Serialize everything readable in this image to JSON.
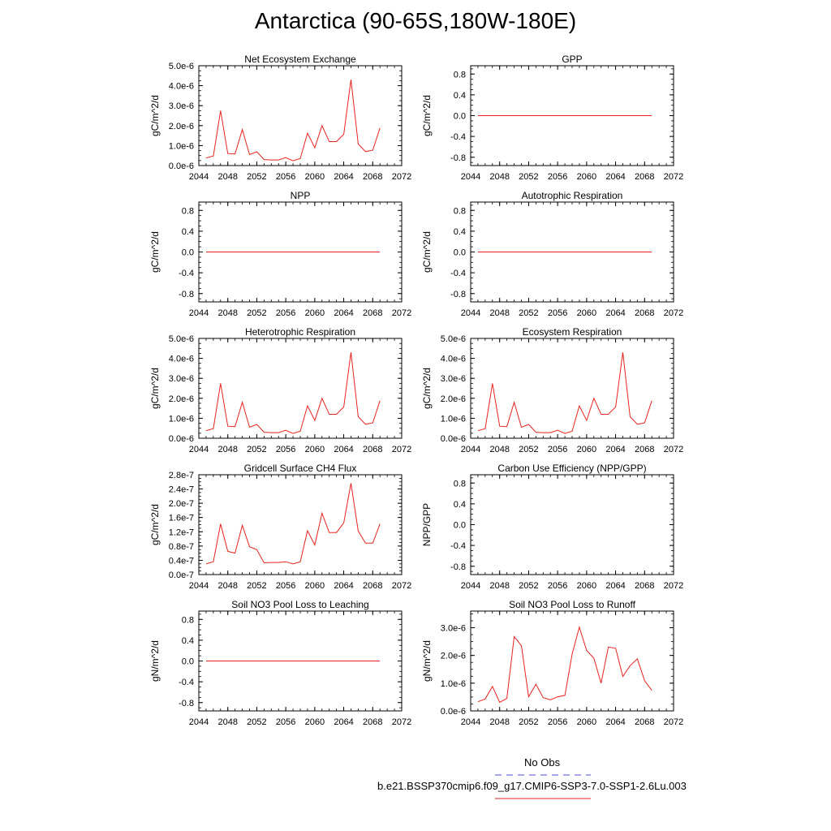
{
  "title": "Antarctica (90-65S,180W-180E)",
  "legend": {
    "items": [
      {
        "label": "No Obs",
        "color": "#4b4bd6",
        "style": "dashed"
      },
      {
        "label": "b.e21.BSSP370cmip6.f09_g17.CMIP6-SSP3-7.0-SSP1-2.6Lu.003",
        "color": "#e8231f",
        "style": "solid"
      }
    ]
  },
  "chart_data": [
    {
      "type": "line",
      "title": "Net Ecosystem Exchange",
      "ylabel": "gC/m^2/d",
      "xlim": [
        2044,
        2072
      ],
      "xticks": [
        "2044",
        "2048",
        "2052",
        "2056",
        "2060",
        "2064",
        "2068",
        "2072"
      ],
      "ylim": [
        0,
        5e-06
      ],
      "yticks": [
        "0.0e-6",
        "1.0e-6",
        "2.0e-6",
        "3.0e-6",
        "4.0e-6",
        "5.0e-6"
      ],
      "series": [
        {
          "color": "#e8231f",
          "x": [
            2045,
            2046,
            2047,
            2048,
            2049,
            2050,
            2051,
            2052,
            2053,
            2054,
            2055,
            2056,
            2057,
            2058,
            2059,
            2060,
            2061,
            2062,
            2063,
            2064,
            2065,
            2066,
            2067,
            2068,
            2069
          ],
          "y": [
            3.8e-07,
            4.8e-07,
            2.75e-06,
            6e-07,
            5.8e-07,
            1.8e-06,
            5.5e-07,
            6.9e-07,
            3e-07,
            2.8e-07,
            2.8e-07,
            4e-07,
            2.4e-07,
            3.5e-07,
            1.62e-06,
            8.9e-07,
            2e-06,
            1.2e-06,
            1.2e-06,
            1.57e-06,
            4.3e-06,
            1.08e-06,
            7e-07,
            7.7e-07,
            1.88e-06
          ]
        }
      ]
    },
    {
      "type": "line",
      "title": "GPP",
      "ylabel": "gC/m^2/d",
      "xlim": [
        2044,
        2072
      ],
      "xticks": [
        "2044",
        "2048",
        "2052",
        "2056",
        "2060",
        "2064",
        "2068",
        "2072"
      ],
      "ylim": [
        -0.96,
        0.96
      ],
      "yticks": [
        "-0.8",
        "-0.4",
        "0.0",
        "0.4",
        "0.8"
      ],
      "ytick_values": [
        -0.8,
        -0.4,
        0.0,
        0.4,
        0.8
      ],
      "series": [
        {
          "color": "#e8231f",
          "x": [
            2045,
            2069
          ],
          "y": [
            0,
            0
          ]
        }
      ]
    },
    {
      "type": "line",
      "title": "NPP",
      "ylabel": "gC/m^2/d",
      "xlim": [
        2044,
        2072
      ],
      "xticks": [
        "2044",
        "2048",
        "2052",
        "2056",
        "2060",
        "2064",
        "2068",
        "2072"
      ],
      "ylim": [
        -0.96,
        0.96
      ],
      "yticks": [
        "-0.8",
        "-0.4",
        "0.0",
        "0.4",
        "0.8"
      ],
      "ytick_values": [
        -0.8,
        -0.4,
        0.0,
        0.4,
        0.8
      ],
      "series": [
        {
          "color": "#e8231f",
          "x": [
            2045,
            2069
          ],
          "y": [
            0,
            0
          ]
        }
      ]
    },
    {
      "type": "line",
      "title": "Autotrophic Respiration",
      "ylabel": "gC/m^2/d",
      "xlim": [
        2044,
        2072
      ],
      "xticks": [
        "2044",
        "2048",
        "2052",
        "2056",
        "2060",
        "2064",
        "2068",
        "2072"
      ],
      "ylim": [
        -0.96,
        0.96
      ],
      "yticks": [
        "-0.8",
        "-0.4",
        "0.0",
        "0.4",
        "0.8"
      ],
      "ytick_values": [
        -0.8,
        -0.4,
        0.0,
        0.4,
        0.8
      ],
      "series": [
        {
          "color": "#e8231f",
          "x": [
            2045,
            2069
          ],
          "y": [
            0,
            0
          ]
        }
      ]
    },
    {
      "type": "line",
      "title": "Heterotrophic Respiration",
      "ylabel": "gC/m^2/d",
      "xlim": [
        2044,
        2072
      ],
      "xticks": [
        "2044",
        "2048",
        "2052",
        "2056",
        "2060",
        "2064",
        "2068",
        "2072"
      ],
      "ylim": [
        0,
        5e-06
      ],
      "yticks": [
        "0.0e-6",
        "1.0e-6",
        "2.0e-6",
        "3.0e-6",
        "4.0e-6",
        "5.0e-6"
      ],
      "series": [
        {
          "color": "#e8231f",
          "x": [
            2045,
            2046,
            2047,
            2048,
            2049,
            2050,
            2051,
            2052,
            2053,
            2054,
            2055,
            2056,
            2057,
            2058,
            2059,
            2060,
            2061,
            2062,
            2063,
            2064,
            2065,
            2066,
            2067,
            2068,
            2069
          ],
          "y": [
            3.8e-07,
            4.8e-07,
            2.75e-06,
            6e-07,
            5.8e-07,
            1.8e-06,
            5.5e-07,
            6.9e-07,
            3e-07,
            2.8e-07,
            2.8e-07,
            4e-07,
            2.4e-07,
            3.5e-07,
            1.62e-06,
            8.9e-07,
            2e-06,
            1.2e-06,
            1.2e-06,
            1.57e-06,
            4.3e-06,
            1.08e-06,
            7e-07,
            7.7e-07,
            1.88e-06
          ]
        }
      ]
    },
    {
      "type": "line",
      "title": "Ecosystem Respiration",
      "ylabel": "gC/m^2/d",
      "xlim": [
        2044,
        2072
      ],
      "xticks": [
        "2044",
        "2048",
        "2052",
        "2056",
        "2060",
        "2064",
        "2068",
        "2072"
      ],
      "ylim": [
        0,
        5e-06
      ],
      "yticks": [
        "0.0e-6",
        "1.0e-6",
        "2.0e-6",
        "3.0e-6",
        "4.0e-6",
        "5.0e-6"
      ],
      "series": [
        {
          "color": "#e8231f",
          "x": [
            2045,
            2046,
            2047,
            2048,
            2049,
            2050,
            2051,
            2052,
            2053,
            2054,
            2055,
            2056,
            2057,
            2058,
            2059,
            2060,
            2061,
            2062,
            2063,
            2064,
            2065,
            2066,
            2067,
            2068,
            2069
          ],
          "y": [
            3.8e-07,
            4.8e-07,
            2.75e-06,
            6e-07,
            5.8e-07,
            1.8e-06,
            5.5e-07,
            6.9e-07,
            3e-07,
            2.8e-07,
            2.8e-07,
            4e-07,
            2.4e-07,
            3.5e-07,
            1.62e-06,
            8.9e-07,
            2e-06,
            1.2e-06,
            1.2e-06,
            1.57e-06,
            4.3e-06,
            1.08e-06,
            7e-07,
            7.7e-07,
            1.88e-06
          ]
        }
      ]
    },
    {
      "type": "line",
      "title": "Gridcell Surface CH4 Flux",
      "ylabel": "gC/m^2/d",
      "xlim": [
        2044,
        2072
      ],
      "xticks": [
        "2044",
        "2048",
        "2052",
        "2056",
        "2060",
        "2064",
        "2068",
        "2072"
      ],
      "ylim": [
        0,
        2.8e-07
      ],
      "yticks": [
        "0.0e-7",
        "0.4e-7",
        "0.8e-7",
        "1.2e-7",
        "1.6e-7",
        "2.0e-7",
        "2.4e-7",
        "2.8e-7"
      ],
      "series": [
        {
          "color": "#e8231f",
          "x": [
            2045,
            2046,
            2047,
            2048,
            2049,
            2050,
            2051,
            2052,
            2053,
            2054,
            2055,
            2056,
            2057,
            2058,
            2059,
            2060,
            2061,
            2062,
            2063,
            2064,
            2065,
            2066,
            2067,
            2068,
            2069
          ],
          "y": [
            3e-08,
            3.6e-08,
            1.42e-07,
            6.5e-08,
            6e-08,
            1.38e-07,
            7.8e-08,
            7e-08,
            3.3e-08,
            3.4e-08,
            3.4e-08,
            3.6e-08,
            3e-08,
            3.6e-08,
            1.23e-07,
            8.3e-08,
            1.72e-07,
            1.18e-07,
            1.18e-07,
            1.45e-07,
            2.56e-07,
            1.22e-07,
            8.8e-08,
            8.8e-08,
            1.42e-07
          ]
        }
      ]
    },
    {
      "type": "line",
      "title": "Carbon Use Efficiency (NPP/GPP)",
      "ylabel": "NPP/GPP",
      "xlim": [
        2044,
        2072
      ],
      "xticks": [
        "2044",
        "2048",
        "2052",
        "2056",
        "2060",
        "2064",
        "2068",
        "2072"
      ],
      "ylim": [
        -0.96,
        0.96
      ],
      "yticks": [
        "-0.8",
        "-0.4",
        "0.0",
        "0.4",
        "0.8"
      ],
      "ytick_values": [
        -0.8,
        -0.4,
        0.0,
        0.4,
        0.8
      ],
      "series": []
    },
    {
      "type": "line",
      "title": "Soil NO3 Pool Loss to Leaching",
      "ylabel": "gN/m^2/d",
      "xlim": [
        2044,
        2072
      ],
      "xticks": [
        "2044",
        "2048",
        "2052",
        "2056",
        "2060",
        "2064",
        "2068",
        "2072"
      ],
      "ylim": [
        -0.96,
        0.96
      ],
      "yticks": [
        "-0.8",
        "-0.4",
        "0.0",
        "0.4",
        "0.8"
      ],
      "ytick_values": [
        -0.8,
        -0.4,
        0.0,
        0.4,
        0.8
      ],
      "series": [
        {
          "color": "#e8231f",
          "x": [
            2045,
            2069
          ],
          "y": [
            0,
            0
          ]
        }
      ]
    },
    {
      "type": "line",
      "title": "Soil NO3 Pool Loss to Runoff",
      "ylabel": "gN/m^2/d",
      "xlim": [
        2044,
        2072
      ],
      "xticks": [
        "2044",
        "2048",
        "2052",
        "2056",
        "2060",
        "2064",
        "2068",
        "2072"
      ],
      "ylim": [
        0,
        3.6e-06
      ],
      "yticks": [
        "0.0e-6",
        "1.0e-6",
        "2.0e-6",
        "3.0e-6"
      ],
      "ytick_values": [
        0,
        1e-06,
        2e-06,
        3e-06
      ],
      "series": [
        {
          "color": "#e8231f",
          "x": [
            2045,
            2046,
            2047,
            2048,
            2049,
            2050,
            2051,
            2052,
            2053,
            2054,
            2055,
            2056,
            2057,
            2058,
            2059,
            2060,
            2061,
            2062,
            2063,
            2064,
            2065,
            2066,
            2067,
            2068,
            2069
          ],
          "y": [
            3.3e-07,
            4.3e-07,
            8.8e-07,
            3.1e-07,
            4.5e-07,
            2.68e-06,
            2.35e-06,
            5.1e-07,
            9.6e-07,
            4.8e-07,
            4e-07,
            5.1e-07,
            5.6e-07,
            2.05e-06,
            3.02e-06,
            2.18e-06,
            1.9e-06,
            1e-06,
            2.3e-06,
            2.26e-06,
            1.24e-06,
            1.63e-06,
            1.88e-06,
            1.09e-06,
            7.4e-07
          ]
        }
      ]
    }
  ]
}
